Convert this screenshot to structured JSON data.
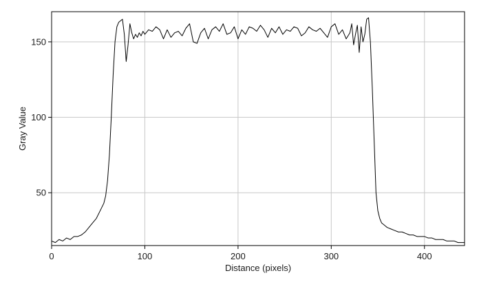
{
  "chart_data": {
    "type": "line",
    "title": "",
    "xlabel": "Distance (pixels)",
    "ylabel": "Gray Value",
    "xlim": [
      0,
      443
    ],
    "ylim": [
      15,
      170
    ],
    "xticks": [
      0,
      100,
      200,
      300,
      400
    ],
    "yticks": [
      50,
      100,
      150
    ],
    "grid": true,
    "legend": "none",
    "line_color": "#000000",
    "grid_color": "#c8c8c8",
    "series": [
      {
        "x": [
          0,
          4,
          8,
          12,
          16,
          20,
          24,
          28,
          32,
          36,
          40,
          44,
          48,
          52,
          56,
          58,
          60,
          62,
          64,
          66,
          68,
          70,
          72,
          74,
          76,
          78,
          80,
          82,
          84,
          86,
          88,
          90,
          92,
          94,
          96,
          98,
          100,
          104,
          108,
          112,
          116,
          120,
          124,
          128,
          132,
          136,
          140,
          144,
          148,
          152,
          156,
          160,
          164,
          168,
          172,
          176,
          180,
          184,
          188,
          192,
          196,
          200,
          204,
          208,
          212,
          216,
          220,
          224,
          228,
          232,
          236,
          240,
          244,
          248,
          252,
          256,
          260,
          264,
          268,
          272,
          276,
          280,
          284,
          288,
          292,
          296,
          300,
          304,
          308,
          312,
          316,
          320,
          322,
          324,
          326,
          328,
          330,
          332,
          334,
          336,
          338,
          340,
          342,
          344,
          346,
          348,
          350,
          352,
          354,
          356,
          358,
          360,
          364,
          368,
          372,
          376,
          380,
          384,
          388,
          392,
          396,
          400,
          404,
          408,
          412,
          416,
          420,
          424,
          428,
          432,
          436,
          440,
          443
        ],
        "values": [
          18,
          17,
          19,
          18,
          20,
          19,
          21,
          21,
          22,
          24,
          27,
          30,
          33,
          38,
          43,
          48,
          58,
          75,
          100,
          128,
          150,
          160,
          163,
          164,
          165,
          155,
          137,
          148,
          162,
          156,
          152,
          155,
          153,
          156,
          154,
          157,
          155,
          158,
          157,
          160,
          158,
          152,
          158,
          153,
          156,
          157,
          154,
          159,
          162,
          150,
          149,
          156,
          159,
          152,
          158,
          160,
          157,
          162,
          155,
          156,
          160,
          152,
          158,
          155,
          160,
          159,
          157,
          161,
          158,
          153,
          159,
          156,
          160,
          155,
          158,
          157,
          160,
          159,
          154,
          156,
          160,
          158,
          157,
          159,
          156,
          153,
          160,
          162,
          155,
          158,
          152,
          156,
          162,
          148,
          155,
          161,
          143,
          160,
          150,
          155,
          165,
          166,
          150,
          120,
          85,
          50,
          38,
          33,
          30,
          29,
          28,
          27,
          26,
          25,
          24,
          24,
          23,
          22,
          22,
          21,
          21,
          21,
          20,
          20,
          19,
          19,
          19,
          18,
          18,
          18,
          17,
          17,
          17
        ]
      }
    ]
  }
}
